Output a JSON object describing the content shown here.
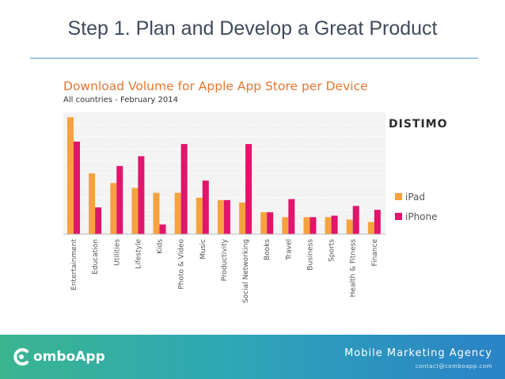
{
  "slide": {
    "title": "Step 1. Plan and Develop a Great Product"
  },
  "brand": {
    "source": "DISTIMO"
  },
  "footer": {
    "logo_text": "omboApp",
    "agency": "Mobile Marketing Agency",
    "contact": "contact@comboapp.com"
  },
  "colors": {
    "ipad": "#f7a23e",
    "iphone": "#e0156b",
    "title": "#e4762f"
  },
  "chart_data": {
    "type": "bar",
    "title": "Download Volume for Apple App Store per Device",
    "subtitle": "All countries - February 2014",
    "categories": [
      "Entertainment",
      "Education",
      "Utilities",
      "Lifestyle",
      "Kids",
      "Photo & Video",
      "Music",
      "Productivity",
      "Social Networking",
      "Books",
      "Travel",
      "Business",
      "Sports",
      "Health & Fitness",
      "Finance"
    ],
    "series": [
      {
        "name": "iPad",
        "values": [
          24,
          12.5,
          10.5,
          9.5,
          8.5,
          8.5,
          7.5,
          7,
          6.5,
          4.5,
          3.5,
          3.5,
          3.5,
          3,
          2.5
        ]
      },
      {
        "name": "iPhone",
        "values": [
          19,
          5.5,
          14,
          16,
          2,
          18.5,
          11,
          7,
          18.5,
          4.5,
          7.2,
          3.5,
          3.8,
          5.8,
          5
        ]
      }
    ],
    "ylim": [
      0,
      25
    ],
    "grid": true,
    "legend": "right"
  }
}
